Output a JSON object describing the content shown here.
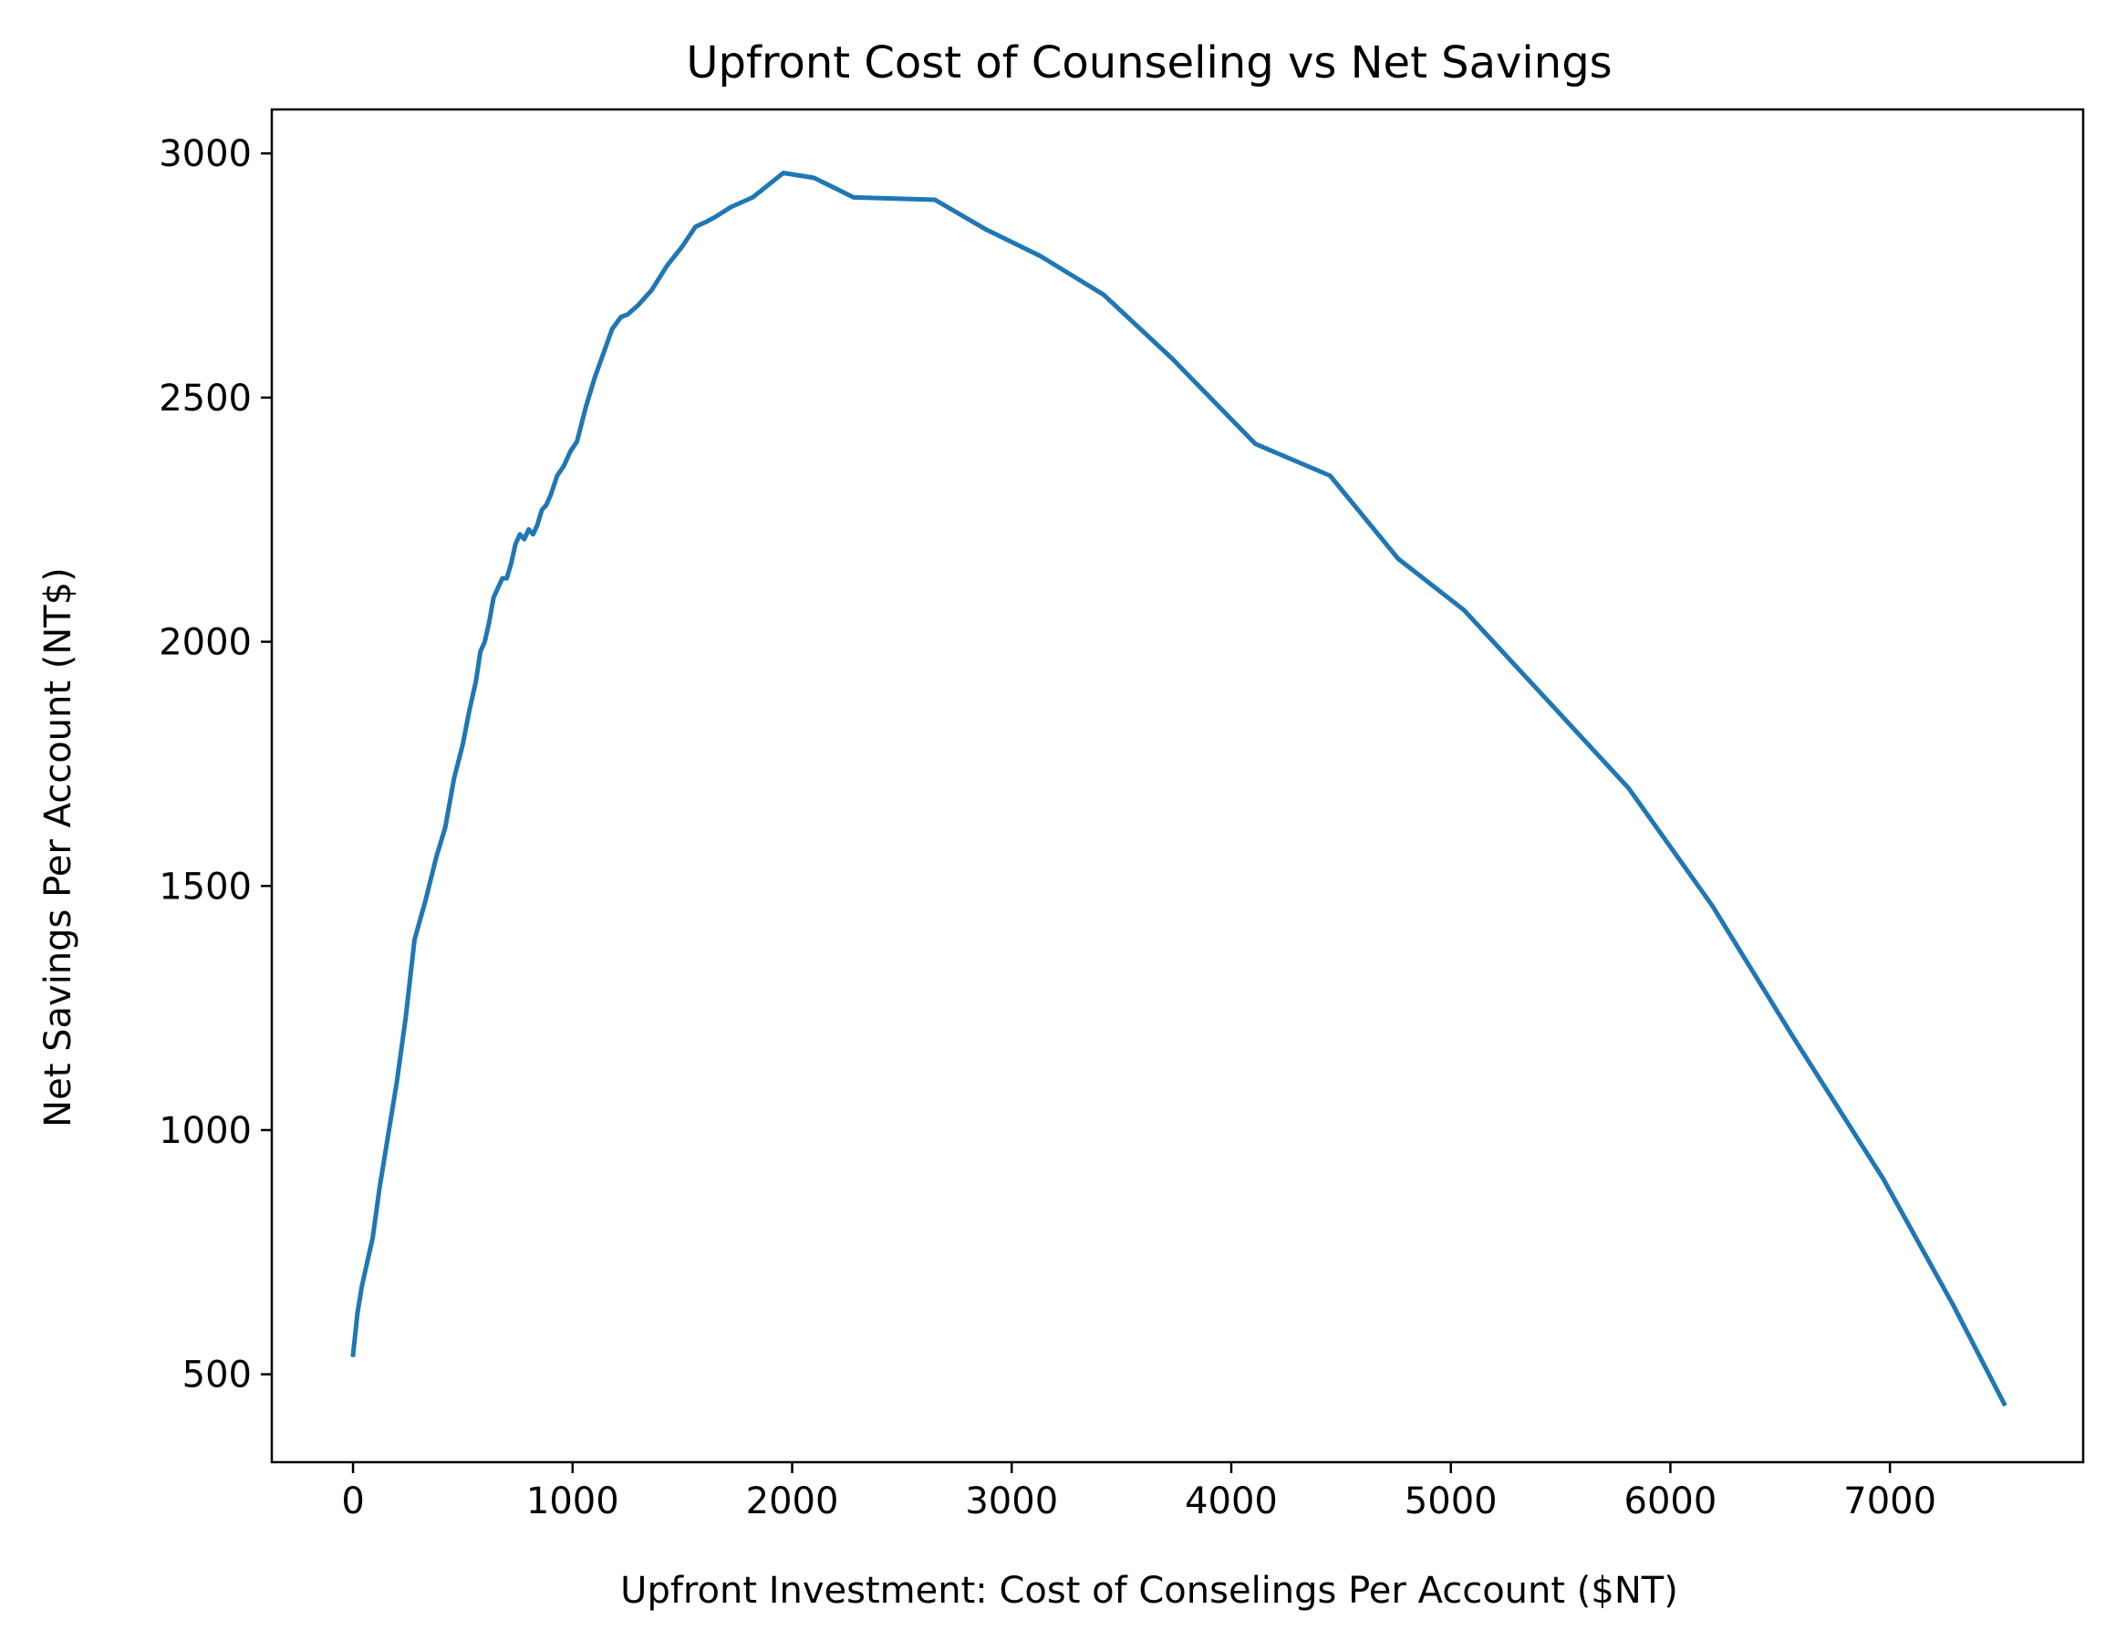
{
  "chart_data": {
    "type": "line",
    "title": "Upfront Cost of Counseling vs Net Savings",
    "xlabel": "Upfront Investment: Cost of Conselings Per Account ($NT)",
    "ylabel": "Net Savings Per Account (NT$)",
    "xlim": [
      -370,
      7880
    ],
    "ylim": [
      320,
      3090
    ],
    "xticks": [
      0,
      1000,
      2000,
      3000,
      4000,
      5000,
      6000,
      7000
    ],
    "xtick_labels": [
      "0",
      "1000",
      "2000",
      "3000",
      "4000",
      "5000",
      "6000",
      "7000"
    ],
    "yticks": [
      500,
      1000,
      1500,
      2000,
      2500,
      3000
    ],
    "ytick_labels": [
      "500",
      "1000",
      "1500",
      "2000",
      "2500",
      "3000"
    ],
    "grid": false,
    "series": [
      {
        "color": "#1f77b4",
        "x": [
          0,
          20,
          40,
          60,
          90,
          120,
          160,
          200,
          240,
          280,
          330,
          380,
          420,
          460,
          500,
          530,
          560,
          580,
          600,
          620,
          640,
          660,
          680,
          700,
          720,
          740,
          760,
          780,
          800,
          820,
          840,
          860,
          880,
          900,
          930,
          960,
          990,
          1020,
          1060,
          1100,
          1140,
          1180,
          1220,
          1250,
          1300,
          1360,
          1430,
          1500,
          1560,
          1610,
          1650,
          1720,
          1820,
          1960,
          2100,
          2280,
          2650,
          2880,
          3130,
          3420,
          3730,
          4110,
          4450,
          4760,
          5060,
          5430,
          5810,
          6190,
          6560,
          6970,
          7290,
          7520
        ],
        "y": [
          540,
          625,
          680,
          720,
          780,
          880,
          990,
          1100,
          1230,
          1390,
          1470,
          1560,
          1620,
          1720,
          1790,
          1860,
          1920,
          1980,
          2000,
          2040,
          2090,
          2110,
          2130,
          2130,
          2160,
          2200,
          2220,
          2210,
          2230,
          2220,
          2240,
          2270,
          2280,
          2300,
          2340,
          2360,
          2390,
          2410,
          2480,
          2540,
          2590,
          2640,
          2665,
          2670,
          2690,
          2720,
          2770,
          2810,
          2850,
          2860,
          2870,
          2890,
          2910,
          2960,
          2950,
          2910,
          2905,
          2845,
          2790,
          2710,
          2580,
          2405,
          2340,
          2170,
          2065,
          1885,
          1700,
          1460,
          1190,
          900,
          640,
          440
        ]
      }
    ]
  }
}
